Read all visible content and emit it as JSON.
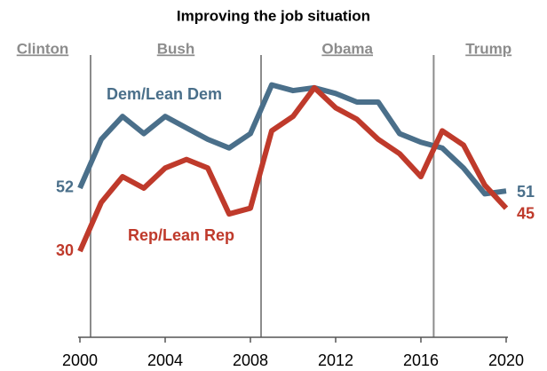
{
  "chart_data": {
    "type": "line",
    "title": "Improving the job situation",
    "x": [
      2000,
      2001,
      2002,
      2003,
      2004,
      2005,
      2006,
      2007,
      2008,
      2009,
      2010,
      2011,
      2012,
      2013,
      2014,
      2015,
      2016,
      2017,
      2018,
      2019,
      2020
    ],
    "series": [
      {
        "name": "Dem/Lean Dem",
        "color": "#4a6f8a",
        "values": [
          52,
          69,
          77,
          71,
          77,
          73,
          69,
          66,
          71,
          88,
          86,
          87,
          85,
          82,
          82,
          71,
          68,
          66,
          59,
          50,
          51
        ]
      },
      {
        "name": "Rep/Lean Rep",
        "color": "#bf3a2b",
        "values": [
          30,
          47,
          56,
          52,
          59,
          62,
          59,
          43,
          45,
          72,
          77,
          87,
          80,
          76,
          69,
          64,
          56,
          72,
          67,
          53,
          45
        ]
      }
    ],
    "eras": [
      {
        "name": "Clinton",
        "start": 1999
      },
      {
        "name": "Bush",
        "start": 2000.5
      },
      {
        "name": "Obama",
        "start": 2008.5
      },
      {
        "name": "Trump",
        "start": 2016.6
      }
    ],
    "xlim": [
      2000,
      2020
    ],
    "xticks": [
      2000,
      2004,
      2008,
      2012,
      2016,
      2020
    ],
    "ylim": [
      0,
      95
    ]
  }
}
